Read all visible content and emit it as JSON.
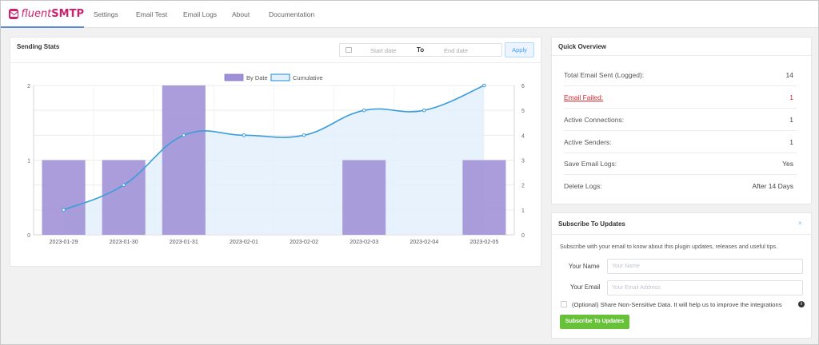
{
  "brand": {
    "name_italic": "fluent",
    "name_bold": "SMTP"
  },
  "nav": [
    "Settings",
    "Email Test",
    "Email Logs",
    "About",
    "Documentation"
  ],
  "stats_panel": {
    "title": "Sending Stats",
    "start_placeholder": "Start date",
    "to_label": "To",
    "end_placeholder": "End date",
    "apply_label": "Apply"
  },
  "overview": {
    "title": "Quick Overview",
    "rows": [
      {
        "label": "Total Email Sent (Logged):",
        "value": "14"
      },
      {
        "label": "Email Failed:",
        "value": "1"
      },
      {
        "label": "Active Connections:",
        "value": "1"
      },
      {
        "label": "Active Senders:",
        "value": "1"
      },
      {
        "label": "Save Email Logs:",
        "value": "Yes"
      },
      {
        "label": "Delete Logs:",
        "value": "After 14 Days"
      }
    ]
  },
  "subscribe": {
    "title": "Subscribe To Updates",
    "close_glyph": "×",
    "description": "Subscribe with your email to know about this plugin updates, releases and useful tips.",
    "name_label": "Your Name",
    "name_placeholder": "Your Name",
    "email_label": "Your Email",
    "email_placeholder": "Your Email Address",
    "share_label": "(Optional) Share Non-Sensitive Data. It will help us to improve the integrations",
    "button_label": "Subscribe To Updates"
  },
  "colors": {
    "brand": "#ce1f6a",
    "bar": "#9f8fd6",
    "line": "#3c9ddb",
    "area": "#e3f0fb",
    "failed": "#e3262c",
    "subscribe_button": "#67c23a"
  },
  "chart_data": {
    "type": "bar",
    "categories": [
      "2023-01-29",
      "2023-01-30",
      "2023-01-31",
      "2023-02-01",
      "2023-02-02",
      "2023-02-03",
      "2023-02-04",
      "2023-02-05"
    ],
    "series": [
      {
        "name": "By Date",
        "type": "bar",
        "axis": "left",
        "values": [
          1,
          1,
          2,
          0,
          0,
          1,
          0,
          1
        ]
      },
      {
        "name": "Cumulative",
        "type": "line",
        "axis": "right",
        "values": [
          1,
          2,
          4,
          4,
          4,
          5,
          5,
          6
        ]
      }
    ],
    "y_left": {
      "ticks": [
        "0",
        "1",
        "2"
      ],
      "lim": [
        0,
        2
      ]
    },
    "y_right": {
      "ticks": [
        "0",
        "1",
        "2",
        "3",
        "4",
        "5",
        "6"
      ],
      "lim": [
        0,
        6
      ]
    },
    "legend_position": "top-center",
    "grid": true
  }
}
